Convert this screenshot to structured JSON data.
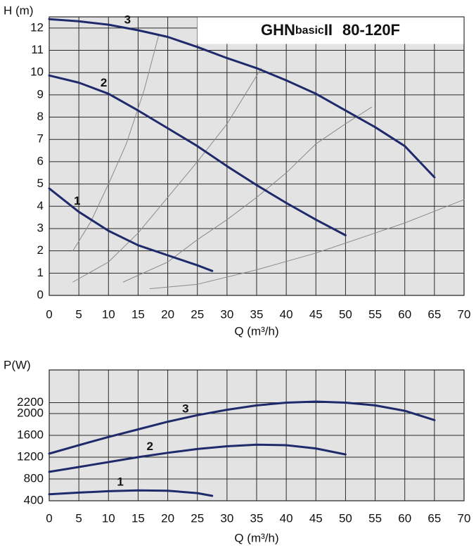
{
  "chart_data": [
    {
      "type": "line",
      "title": [
        "GHN",
        "basic",
        "II",
        "80-120F"
      ],
      "y_label": "H (m)",
      "x_label": "Q (m³/h)",
      "xlim": [
        0,
        70
      ],
      "xticks": [
        0,
        5,
        10,
        15,
        20,
        25,
        30,
        35,
        40,
        45,
        50,
        55,
        60,
        65,
        70
      ],
      "ylim": [
        0,
        12.5
      ],
      "yticks": [
        0,
        1,
        2,
        3,
        4,
        5,
        6,
        7,
        8,
        9,
        10,
        11,
        12
      ],
      "grid": true,
      "series": [
        {
          "name": "1",
          "color": "#1f2a6b",
          "x": [
            0,
            5,
            10,
            15,
            20,
            25,
            27.5
          ],
          "values": [
            4.8,
            3.75,
            2.9,
            2.25,
            1.8,
            1.35,
            1.1
          ]
        },
        {
          "name": "2",
          "color": "#1f2a6b",
          "x": [
            0,
            5,
            10,
            15,
            20,
            25,
            30,
            35,
            40,
            45,
            50
          ],
          "values": [
            9.87,
            9.55,
            9.05,
            8.3,
            7.5,
            6.7,
            5.8,
            4.95,
            4.15,
            3.4,
            2.7
          ]
        },
        {
          "name": "3",
          "color": "#1f2a6b",
          "x": [
            0,
            5,
            10,
            15,
            20,
            25,
            30,
            35,
            40,
            45,
            50,
            55,
            60,
            65
          ],
          "values": [
            12.4,
            12.3,
            12.15,
            11.9,
            11.6,
            11.15,
            10.65,
            10.2,
            9.65,
            9.05,
            8.3,
            7.55,
            6.7,
            5.3
          ]
        }
      ],
      "system_curves": [
        {
          "color": "#8a8a8a",
          "x": [
            4,
            7,
            10,
            13,
            16,
            18.5
          ],
          "values": [
            2,
            3.3,
            5,
            6.8,
            9.2,
            11.7
          ]
        },
        {
          "color": "#8a8a8a",
          "x": [
            4,
            10,
            15,
            20,
            25,
            30,
            35.8
          ],
          "values": [
            0.6,
            1.5,
            2.8,
            4.4,
            6,
            7.7,
            10.2
          ]
        },
        {
          "color": "#8a8a8a",
          "x": [
            12.5,
            20,
            25,
            30,
            35,
            40,
            45,
            50,
            54.4
          ],
          "values": [
            0.6,
            1.5,
            2.5,
            3.4,
            4.4,
            5.5,
            6.8,
            7.7,
            8.45
          ]
        },
        {
          "color": "#8a8a8a",
          "x": [
            17,
            25,
            35,
            45,
            50,
            60,
            70
          ],
          "values": [
            0.3,
            0.5,
            1.15,
            1.9,
            2.35,
            3.25,
            4.3
          ]
        }
      ]
    },
    {
      "type": "line",
      "y_label": "P(W)",
      "x_label": "Q (m³/h)",
      "xlim": [
        0,
        70
      ],
      "xticks": [
        0,
        5,
        10,
        15,
        20,
        25,
        30,
        35,
        40,
        45,
        50,
        55,
        60,
        65,
        70
      ],
      "ylim": [
        400,
        2800
      ],
      "yticks": [
        400,
        800,
        1200,
        1600,
        2000,
        2200
      ],
      "grid": true,
      "series": [
        {
          "name": "1",
          "color": "#1f2a6b",
          "x": [
            0,
            5,
            10,
            15,
            20,
            25,
            27.5
          ],
          "values": [
            520,
            550,
            575,
            590,
            585,
            540,
            490
          ]
        },
        {
          "name": "2",
          "color": "#1f2a6b",
          "x": [
            0,
            5,
            10,
            15,
            20,
            25,
            30,
            35,
            40,
            45,
            50
          ],
          "values": [
            930,
            1020,
            1110,
            1200,
            1280,
            1350,
            1400,
            1430,
            1420,
            1360,
            1250
          ]
        },
        {
          "name": "3",
          "color": "#1f2a6b",
          "x": [
            0,
            5,
            10,
            15,
            20,
            25,
            30,
            35,
            40,
            45,
            50,
            55,
            60,
            65
          ],
          "values": [
            1265,
            1420,
            1570,
            1710,
            1850,
            1970,
            2070,
            2150,
            2200,
            2220,
            2200,
            2150,
            2050,
            1880
          ]
        }
      ]
    }
  ]
}
